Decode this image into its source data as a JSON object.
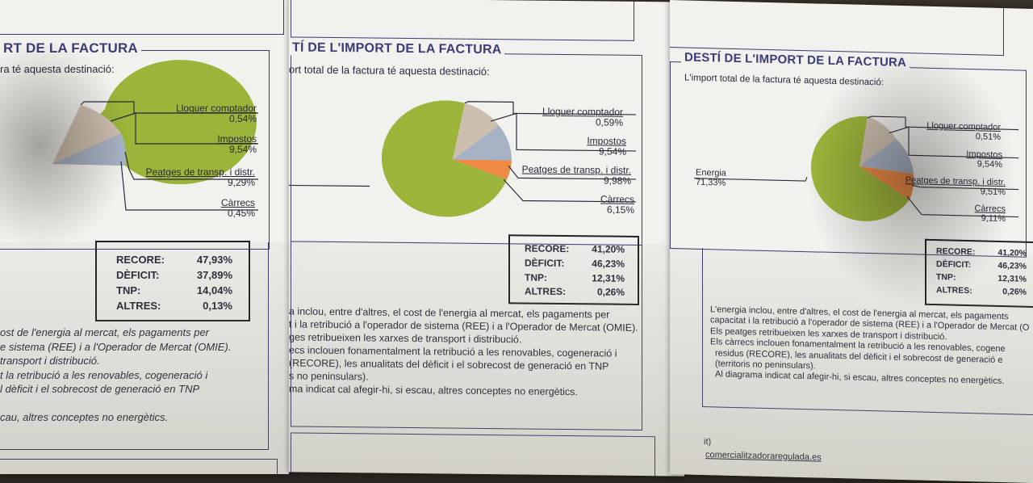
{
  "doc1": {
    "title": "RT DE LA FACTURA",
    "subtitle": "ra té aquesta destinació:",
    "labels": [
      {
        "name": "Lloguer comptador",
        "value": "0,54%"
      },
      {
        "name": "Impostos",
        "value": "9,54%"
      },
      {
        "name": "Peatges de transp. i distr.",
        "value": "9,29%"
      },
      {
        "name": "Càrrecs",
        "value": "0,45%"
      }
    ],
    "summary": [
      {
        "k": "RECORE:",
        "v": "47,93%"
      },
      {
        "k": "DÈFICIT:",
        "v": "37,89%"
      },
      {
        "k": "TNP:",
        "v": "14,04%"
      },
      {
        "k": "ALTRES:",
        "v": "0,13%"
      }
    ],
    "paragraph": [
      "ost de l'energia al mercat, els pagaments per",
      "e sistema (REE) i a l'Operador de Mercat (OMIE).",
      " transport i distribució.",
      "t la retribució a les renovables, cogeneració i",
      "l dèficit i el sobrecost de generació en TNP",
      "",
      "cau, altres conceptes no energètics."
    ]
  },
  "doc2": {
    "title": "TÍ DE L'IMPORT DE LA FACTURA",
    "subtitle": "ort total de la factura té aquesta destinació:",
    "labels": [
      {
        "name": "Lloguer comptador",
        "value": "0,59%"
      },
      {
        "name": "Impostos",
        "value": "9,54%"
      },
      {
        "name": "Peatges de transp. i distr.",
        "value": "9,98%"
      },
      {
        "name": "Càrrecs",
        "value": "6,15%"
      }
    ],
    "summary": [
      {
        "k": "RECORE:",
        "v": "41,20%"
      },
      {
        "k": "DÈFICIT:",
        "v": "46,23%"
      },
      {
        "k": "TNP:",
        "v": "12,31%"
      },
      {
        "k": "ALTRES:",
        "v": "0,26%"
      }
    ],
    "paragraph": [
      "a inclou, entre d'altres, el cost de l'energia al mercat, els pagaments per",
      "t i la retribució a l'operador de sistema (REE) i a l'Operador de Mercat (OMIE).",
      "ges retribueixen les xarxes de transport i distribució.",
      "ecs inclouen fonamentalment la retribució a les renovables, cogeneració i",
      "(RECORE), les anualitats del dèficit i el sobrecost de generació en TNP",
      "s no peninsulars).",
      "ma indicat cal afegir-hi, si escau, altres conceptes no energètics."
    ]
  },
  "doc3": {
    "title": "DESTÍ DE L'IMPORT DE LA FACTURA",
    "subtitle": "L'import total de la factura té aquesta destinació:",
    "energia": {
      "name": "Energia",
      "value": "71,33%"
    },
    "labels": [
      {
        "name": "Lloguer comptador",
        "value": "0,51%"
      },
      {
        "name": "Impostos",
        "value": "9,54%"
      },
      {
        "name": "Peatges de transp. i distr.",
        "value": "9,51%"
      },
      {
        "name": "Càrrecs",
        "value": "9,11%"
      }
    ],
    "summary": [
      {
        "k": "RECORE:",
        "v": "41,20%"
      },
      {
        "k": "DÈFICIT:",
        "v": "46,23%"
      },
      {
        "k": "TNP:",
        "v": "12,31%"
      },
      {
        "k": "ALTRES:",
        "v": "0,26%"
      }
    ],
    "paragraph": [
      "L'energia inclou, entre d'altres, el cost de l'energia al mercat, els pagaments",
      "capacitat i la retribució a l'operador de sistema (REE) i a l'Operador de Mercat (O",
      "Els peatges retribueixen les xarxes de transport i distribució.",
      "Els càrrecs inclouen fonamentalment la retribució a les renovables, cogene",
      "residus (RECORE), les anualitats del dèficit i el sobrecost de generació e",
      "(territoris no peninsulars).",
      "Al diagrama indicat cal afegir-hi, si escau, altres conceptes no energètics."
    ],
    "footer_prefix": "it)",
    "footer_link": "comercialitzadoraregulada.es"
  },
  "colors": {
    "energia": "#9bb53a",
    "lloguer": "#cdbfb0",
    "impostos": "#a7b2c4",
    "peatges": "#ee8a44",
    "carrecs": "#d9cbb8",
    "title": "#3b3b78"
  }
}
